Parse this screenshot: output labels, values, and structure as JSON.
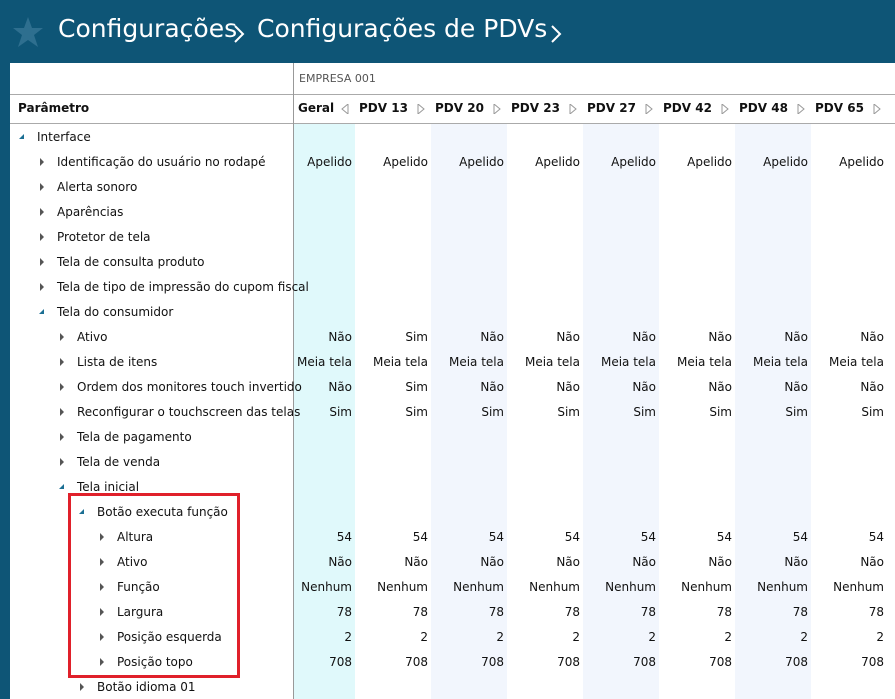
{
  "header": {
    "breadcrumb": [
      "Configurações",
      "Configurações de PDVs"
    ]
  },
  "table": {
    "group": "EMPRESA 001",
    "param_header": "Parâmetro",
    "columns": [
      "Geral",
      "PDV 13",
      "PDV 20",
      "PDV 23",
      "PDV 27",
      "PDV 42",
      "PDV 48",
      "PDV 65"
    ],
    "rows": [
      {
        "label": "Interface",
        "level": 0,
        "expanded": true
      },
      {
        "label": "Identificação do usuário no rodapé",
        "level": 1,
        "values": [
          "Apelido",
          "Apelido",
          "Apelido",
          "Apelido",
          "Apelido",
          "Apelido",
          "Apelido",
          "Apelido"
        ]
      },
      {
        "label": "Alerta sonoro",
        "level": 1
      },
      {
        "label": "Aparências",
        "level": 1
      },
      {
        "label": "Protetor de tela",
        "level": 1
      },
      {
        "label": "Tela de consulta produto",
        "level": 1
      },
      {
        "label": "Tela de tipo de impressão do cupom fiscal",
        "level": 1
      },
      {
        "label": "Tela do consumidor",
        "level": 1,
        "expanded": true
      },
      {
        "label": "Ativo",
        "level": 2,
        "values": [
          "Não",
          "Sim",
          "Não",
          "Não",
          "Não",
          "Não",
          "Não",
          "Não"
        ]
      },
      {
        "label": "Lista de itens",
        "level": 2,
        "values": [
          "Meia tela",
          "Meia tela",
          "Meia tela",
          "Meia tela",
          "Meia tela",
          "Meia tela",
          "Meia tela",
          "Meia tela"
        ]
      },
      {
        "label": "Ordem dos monitores touch invertido",
        "level": 2,
        "values": [
          "Não",
          "Sim",
          "Não",
          "Não",
          "Não",
          "Não",
          "Não",
          "Não"
        ]
      },
      {
        "label": "Reconfigurar o touchscreen das telas",
        "level": 2,
        "values": [
          "Sim",
          "Sim",
          "Sim",
          "Sim",
          "Sim",
          "Sim",
          "Sim",
          "Sim"
        ]
      },
      {
        "label": "Tela de pagamento",
        "level": 2
      },
      {
        "label": "Tela de venda",
        "level": 2
      },
      {
        "label": "Tela inicial",
        "level": 2,
        "expanded": true
      },
      {
        "label": "Botão executa função",
        "level": 3,
        "expanded": true
      },
      {
        "label": "Altura",
        "level": 4,
        "values": [
          54,
          54,
          54,
          54,
          54,
          54,
          54,
          54
        ]
      },
      {
        "label": "Ativo",
        "level": 4,
        "values": [
          "Não",
          "Não",
          "Não",
          "Não",
          "Não",
          "Não",
          "Não",
          "Não"
        ]
      },
      {
        "label": "Função",
        "level": 4,
        "values": [
          "Nenhum",
          "Nenhum",
          "Nenhum",
          "Nenhum",
          "Nenhum",
          "Nenhum",
          "Nenhum",
          "Nenhum"
        ]
      },
      {
        "label": "Largura",
        "level": 4,
        "values": [
          78,
          78,
          78,
          78,
          78,
          78,
          78,
          78
        ]
      },
      {
        "label": "Posição esquerda",
        "level": 4,
        "values": [
          2,
          2,
          2,
          2,
          2,
          2,
          2,
          2
        ]
      },
      {
        "label": "Posição topo",
        "level": 4,
        "values": [
          708,
          708,
          708,
          708,
          708,
          708,
          708,
          708
        ]
      },
      {
        "label": "Botão idioma 01",
        "level": 3
      }
    ]
  }
}
